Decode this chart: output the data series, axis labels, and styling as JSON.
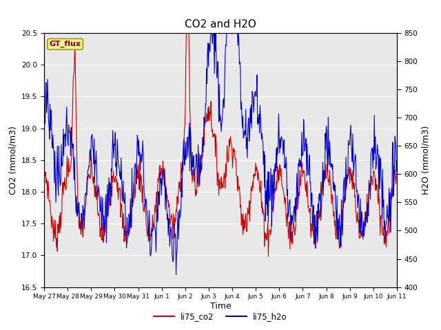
{
  "title": "CO2 and H2O",
  "xlabel": "Time",
  "ylabel_left": "CO2 (mmol/m3)",
  "ylabel_right": "H2O (mmol/m3)",
  "ylim_left": [
    16.5,
    20.5
  ],
  "ylim_right": [
    400,
    850
  ],
  "bg_color": "#e8e8e8",
  "fig_bg_color": "#ffffff",
  "co2_color": "#cc0000",
  "h2o_color": "#0000cc",
  "xtick_labels": [
    "May 27",
    "May 28",
    "May 29",
    "May 30",
    "May 31",
    "Jun 1",
    "Jun 2",
    "Jun 3",
    "Jun 4",
    "Jun 5",
    "Jun 6",
    "Jun 7",
    "Jun 8",
    "Jun 9",
    "Jun 10",
    "Jun 11"
  ],
  "label_box_text": "GT_flux",
  "legend_co2": "li75_co2",
  "legend_h2o": "li75_h2o",
  "title_fontsize": 11,
  "axis_label_fontsize": 9
}
